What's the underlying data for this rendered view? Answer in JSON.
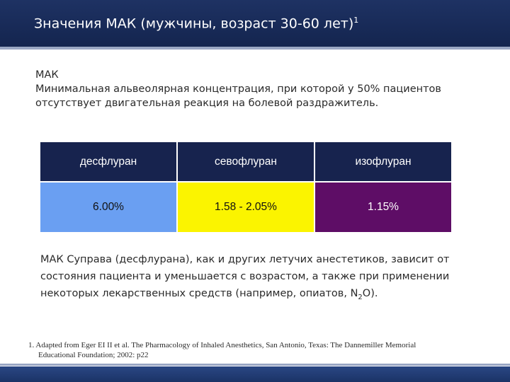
{
  "header": {
    "title": "Значения МАК  (мужчины, возраст 30-60 лет)",
    "title_sup": "1"
  },
  "definition": {
    "term": "МАК",
    "text": "Минимальная альвеолярная концентрация, при которой у 50% пациентов отсутствует двигательная реакция на болевой раздражитель."
  },
  "table": {
    "headers": [
      "десфлуран",
      "севофлуран",
      "изофлуран"
    ],
    "values": [
      "6.00%",
      "1.58 - 2.05%",
      "1.15%"
    ]
  },
  "note": {
    "text_before": "МАК Суправа (десфлурана), как и других летучих анестетиков, зависит от состояния пациента и уменьшается с возрастом, а также при применении некоторых лекарственных средств (например, опиатов,  N",
    "subscript": "2",
    "text_after": "O)."
  },
  "footnote": {
    "line1": "1. Adapted from Eger EI II et al. The Pharmacology of Inhaled Anesthetics, San Antonio, Texas: The Dannemiller Memorial",
    "line2": "Educational Foundation; 2002: p22"
  },
  "colors": {
    "header_bg": "#1e3263",
    "desflurane": "#6a9ff2",
    "sevoflurane": "#fbf400",
    "isoflurane": "#5e0d66"
  }
}
